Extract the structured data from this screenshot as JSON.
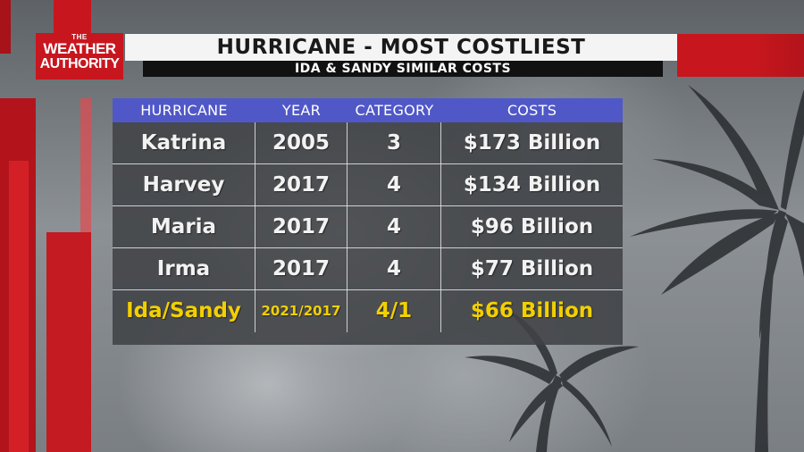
{
  "logo": {
    "small": "THE",
    "line1": "WEATHER",
    "line2": "AUTHORITY"
  },
  "header": {
    "title": "HURRICANE - MOST COSTLIEST",
    "subtitle": "IDA & SANDY SIMILAR COSTS"
  },
  "table": {
    "columns": [
      "HURRICANE",
      "YEAR",
      "CATEGORY",
      "COSTS"
    ],
    "rows": [
      {
        "name": "Katrina",
        "year": "2005",
        "category": "3",
        "cost": "$173 Billion"
      },
      {
        "name": "Harvey",
        "year": "2017",
        "category": "4",
        "cost": "$134 Billion"
      },
      {
        "name": "Maria",
        "year": "2017",
        "category": "4",
        "cost": "$96 Billion"
      },
      {
        "name": "Irma",
        "year": "2017",
        "category": "4",
        "cost": "$77 Billion"
      },
      {
        "name": "Ida/Sandy",
        "year": "2021/2017",
        "category": "4/1",
        "cost": "$66 Billion"
      }
    ]
  },
  "colors": {
    "brand_red": "#c8161e",
    "header_blue": "#5058c8",
    "highlight_yellow": "#f2d000"
  }
}
